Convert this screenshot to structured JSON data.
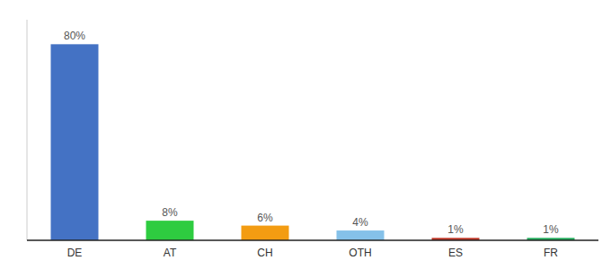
{
  "chart_data": {
    "type": "bar",
    "categories": [
      "DE",
      "AT",
      "CH",
      "OTH",
      "ES",
      "FR"
    ],
    "values": [
      80,
      8,
      6,
      4,
      1,
      1
    ],
    "value_labels": [
      "80%",
      "8%",
      "6%",
      "4%",
      "1%",
      "1%"
    ],
    "colors": [
      "#4472C4",
      "#2ECC40",
      "#F39C12",
      "#85C1E9",
      "#C0392B",
      "#27AE60"
    ],
    "ylim": [
      0,
      90
    ],
    "data_labels": true,
    "tick_labels": "x",
    "grid": false
  }
}
